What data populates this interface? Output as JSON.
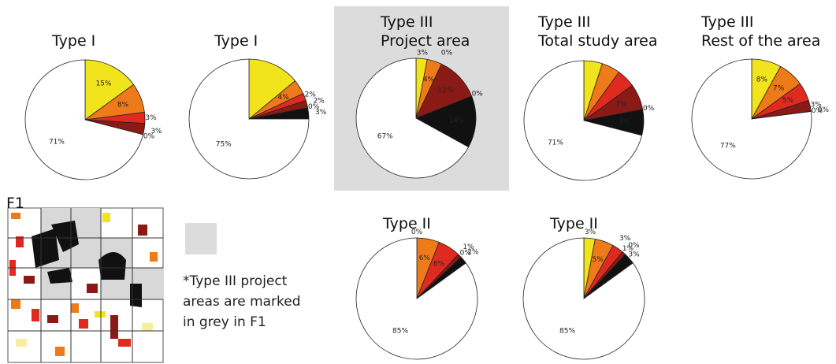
{
  "chart_data": [
    {
      "type": "pie",
      "title": "Type I",
      "categories": [
        null,
        null,
        null,
        null,
        null,
        null
      ],
      "values": [
        15,
        8,
        3,
        3,
        0,
        71
      ],
      "value_labels": [
        "15%",
        "8%",
        "3%",
        "3%",
        "0%",
        "71%"
      ],
      "colors": [
        "#f2e41c",
        "#ee7a1a",
        "#e02a1f",
        "#8a1a16",
        "#111111",
        "#ffffff"
      ]
    },
    {
      "type": "pie",
      "title": "Type I",
      "categories": [
        null,
        null,
        null,
        null,
        null,
        null,
        null
      ],
      "values": [
        14,
        4,
        2,
        2,
        0,
        3,
        75
      ],
      "value_labels": [
        null,
        "4%",
        "2%",
        "2%",
        "0%",
        "3%",
        "75%"
      ],
      "colors": [
        "#f2e41c",
        "#ee7a1a",
        "#e02a1f",
        "#8a1a16",
        "#4a0d0b",
        "#111111",
        "#ffffff"
      ]
    },
    {
      "type": "pie",
      "title": "Type III",
      "subtitle": "Project area",
      "categories": [
        null,
        null,
        null,
        null,
        null,
        null,
        null
      ],
      "values": [
        3,
        4,
        0,
        12,
        0,
        14,
        67
      ],
      "value_labels": [
        "3%",
        "4%",
        "0%",
        "12%",
        "0%",
        "14%",
        "67%"
      ],
      "colors": [
        "#f2e41c",
        "#ee7a1a",
        "#e02a1f",
        "#8a1a16",
        "#4a0d0b",
        "#111111",
        "#ffffff"
      ]
    },
    {
      "type": "pie",
      "title": "Type III",
      "subtitle": "Total study area",
      "categories": [
        null,
        null,
        null,
        null,
        null,
        null,
        null
      ],
      "values": [
        5,
        5,
        5,
        7,
        0,
        7,
        71
      ],
      "value_labels": [
        null,
        null,
        null,
        "7%",
        "0%",
        "7%",
        "71%"
      ],
      "colors": [
        "#f2e41c",
        "#ee7a1a",
        "#e02a1f",
        "#8a1a16",
        "#4a0d0b",
        "#111111",
        "#ffffff"
      ]
    },
    {
      "type": "pie",
      "title": "Type III",
      "subtitle": "Rest of the area",
      "categories": [
        null,
        null,
        null,
        null,
        null,
        null,
        null
      ],
      "values": [
        8,
        7,
        5,
        3,
        0,
        0,
        77
      ],
      "value_labels": [
        "8%",
        "7%",
        "5%",
        "3%",
        "0%",
        "0%",
        "77%"
      ],
      "colors": [
        "#f2e41c",
        "#ee7a1a",
        "#e02a1f",
        "#8a1a16",
        "#4a0d0b",
        "#111111",
        "#ffffff"
      ]
    },
    {
      "type": "pie",
      "title": "Type II",
      "categories": [
        null,
        null,
        null,
        null,
        null,
        null,
        null
      ],
      "values": [
        0,
        6,
        6,
        1,
        0,
        2,
        85
      ],
      "value_labels": [
        "0%",
        "6%",
        "6%",
        "1%",
        "0%",
        "2%",
        "85%"
      ],
      "colors": [
        "#f2e41c",
        "#ee7a1a",
        "#e02a1f",
        "#8a1a16",
        "#4a0d0b",
        "#111111",
        "#ffffff"
      ]
    },
    {
      "type": "pie",
      "title": "Type II",
      "categories": [
        null,
        null,
        null,
        null,
        null,
        null,
        null
      ],
      "values": [
        3,
        5,
        3,
        1,
        0,
        3,
        85
      ],
      "value_labels": [
        "3%",
        "5%",
        "3%",
        "1%",
        "0%",
        "3%",
        "85%"
      ],
      "colors": [
        "#f2e41c",
        "#ee7a1a",
        "#e02a1f",
        "#8a1a16",
        "#4a0d0b",
        "#111111",
        "#ffffff"
      ]
    }
  ],
  "map_label": "F1",
  "note": {
    "lines": [
      "*Type III project",
      "areas are marked",
      "in grey in F1"
    ]
  }
}
